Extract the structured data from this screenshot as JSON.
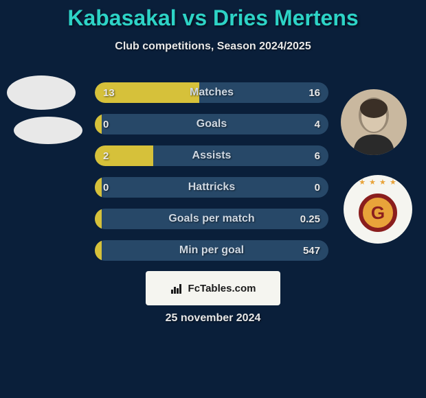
{
  "background_color": "#0a1f3a",
  "title": {
    "text": "Kabasakal vs Dries Mertens",
    "color": "#2dd3c6",
    "fontsize": 32
  },
  "subtitle": {
    "text": "Club competitions, Season 2024/2025",
    "color": "#e8e8e8",
    "fontsize": 16
  },
  "stats": {
    "bar_bg_color": "#274868",
    "left_bar_color": "#d6c13a",
    "right_bar_color": "#274868",
    "label_color": "#cfd8e2",
    "value_color": "#e8e8e8",
    "rows": [
      {
        "label": "Matches",
        "left_val": "13",
        "right_val": "16",
        "left_pct": 44.8,
        "right_pct": 55.2
      },
      {
        "label": "Goals",
        "left_val": "0",
        "right_val": "4",
        "left_pct": 3,
        "right_pct": 97
      },
      {
        "label": "Assists",
        "left_val": "2",
        "right_val": "6",
        "left_pct": 25,
        "right_pct": 75
      },
      {
        "label": "Hattricks",
        "left_val": "0",
        "right_val": "0",
        "left_pct": 3,
        "right_pct": 3
      },
      {
        "label": "Goals per match",
        "left_val": "",
        "right_val": "0.25",
        "left_pct": 3,
        "right_pct": 97
      },
      {
        "label": "Min per goal",
        "left_val": "",
        "right_val": "547",
        "left_pct": 3,
        "right_pct": 97
      }
    ]
  },
  "avatars": {
    "left_1_bg": "#e8e8e8",
    "left_2_bg": "#e8e8e8",
    "right_player_bg": "#c9b89f",
    "right_player_shadow": "#3a2f26",
    "right_club_bg": "#f5f5f0",
    "right_club_stars_color": "#e8a33a",
    "right_club_ring_color": "#8a1e1e",
    "right_club_inner_color": "#e8a33a",
    "right_club_letter": "G",
    "right_club_letter_color": "#8a1e1e"
  },
  "footer": {
    "box_bg": "#f5f5f0",
    "box_text": "FcTables.com",
    "box_text_color": "#1a1a1a",
    "date_text": "25 november 2024",
    "date_color": "#e8e8e8"
  }
}
